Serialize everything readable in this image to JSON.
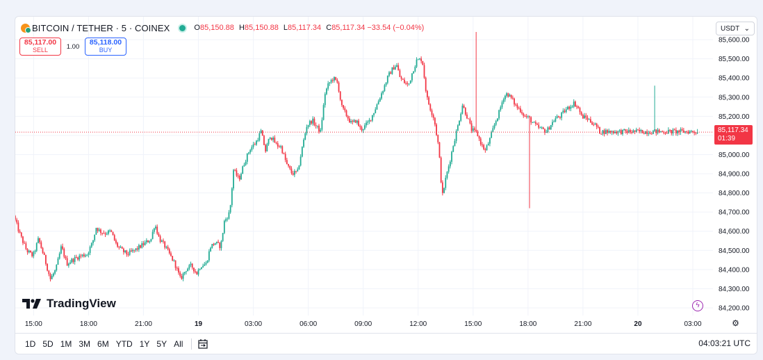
{
  "header": {
    "symbol": "BITCOIN / TETHER · 5 · COINEX",
    "o_label": "O",
    "o": "85,150.88",
    "h_label": "H",
    "h": "85,150.88",
    "l_label": "L",
    "l": "85,117.34",
    "c_label": "C",
    "c": "85,117.34",
    "change": "−33.54 (−0.04%)"
  },
  "trade": {
    "sell_price": "85,117.00",
    "sell_label": "SELL",
    "spread": "1.00",
    "buy_price": "85,118.00",
    "buy_label": "BUY"
  },
  "currency": "USDT",
  "logo": "TradingView",
  "last_price": {
    "value": "85,117.34",
    "countdown": "01:39"
  },
  "timeframes": [
    "1D",
    "5D",
    "1M",
    "3M",
    "6M",
    "YTD",
    "1Y",
    "5Y",
    "All"
  ],
  "clock": "04:03:21 UTC",
  "colors": {
    "up": "#22ab94",
    "down": "#f23645",
    "grid": "#f0f3fa"
  },
  "chart_data": {
    "type": "candlestick",
    "y_ticks": [
      84200,
      84300,
      84400,
      84500,
      84600,
      84700,
      84800,
      84900,
      85000,
      85100,
      85200,
      85300,
      85400,
      85500,
      85600
    ],
    "ylim": [
      84160,
      85720
    ],
    "x_ticks": [
      {
        "label": "15:00",
        "bold": false,
        "t": 33.0
      },
      {
        "label": "18:00",
        "bold": false,
        "t": 36.0
      },
      {
        "label": "21:00",
        "bold": false,
        "t": 39.0
      },
      {
        "label": "19",
        "bold": true,
        "t": 42.0
      },
      {
        "label": "03:00",
        "bold": false,
        "t": 45.0
      },
      {
        "label": "06:00",
        "bold": false,
        "t": 48.0
      },
      {
        "label": "09:00",
        "bold": false,
        "t": 51.0
      },
      {
        "label": "12:00",
        "bold": false,
        "t": 54.0
      },
      {
        "label": "15:00",
        "bold": false,
        "t": 57.0
      },
      {
        "label": "18:00",
        "bold": false,
        "t": 60.0
      },
      {
        "label": "21:00",
        "bold": false,
        "t": 63.0
      },
      {
        "label": "20",
        "bold": true,
        "t": 66.0
      },
      {
        "label": "03:00",
        "bold": false,
        "t": 69.0
      }
    ],
    "x_range_hours": [
      32.0,
      70.1
    ],
    "last_price": 85117.34,
    "anchors": [
      [
        32.0,
        84680
      ],
      [
        32.35,
        84580
      ],
      [
        32.7,
        84500
      ],
      [
        33.05,
        84470
      ],
      [
        33.35,
        84560
      ],
      [
        33.65,
        84470
      ],
      [
        34.0,
        84350
      ],
      [
        34.3,
        84400
      ],
      [
        34.6,
        84520
      ],
      [
        34.9,
        84430
      ],
      [
        35.2,
        84450
      ],
      [
        35.6,
        84470
      ],
      [
        36.0,
        84480
      ],
      [
        36.3,
        84540
      ],
      [
        36.5,
        84620
      ],
      [
        36.7,
        84600
      ],
      [
        37.0,
        84590
      ],
      [
        37.3,
        84600
      ],
      [
        37.6,
        84530
      ],
      [
        37.9,
        84500
      ],
      [
        38.2,
        84480
      ],
      [
        38.6,
        84500
      ],
      [
        38.9,
        84520
      ],
      [
        39.2,
        84540
      ],
      [
        39.5,
        84560
      ],
      [
        39.7,
        84640
      ],
      [
        39.95,
        84560
      ],
      [
        40.2,
        84530
      ],
      [
        40.5,
        84480
      ],
      [
        40.8,
        84430
      ],
      [
        41.1,
        84350
      ],
      [
        41.4,
        84400
      ],
      [
        41.7,
        84420
      ],
      [
        42.0,
        84380
      ],
      [
        42.2,
        84420
      ],
      [
        42.5,
        84430
      ],
      [
        42.75,
        84520
      ],
      [
        43.0,
        84540
      ],
      [
        43.3,
        84520
      ],
      [
        43.5,
        84650
      ],
      [
        43.8,
        84700
      ],
      [
        44.0,
        84920
      ],
      [
        44.3,
        84870
      ],
      [
        44.6,
        84960
      ],
      [
        44.9,
        85030
      ],
      [
        45.2,
        85060
      ],
      [
        45.5,
        85120
      ],
      [
        45.75,
        85020
      ],
      [
        46.0,
        85100
      ],
      [
        46.35,
        85050
      ],
      [
        46.6,
        85040
      ],
      [
        46.9,
        84950
      ],
      [
        47.2,
        84900
      ],
      [
        47.5,
        84910
      ],
      [
        47.8,
        85060
      ],
      [
        48.0,
        85150
      ],
      [
        48.3,
        85180
      ],
      [
        48.5,
        85150
      ],
      [
        48.75,
        85120
      ],
      [
        49.0,
        85320
      ],
      [
        49.2,
        85370
      ],
      [
        49.45,
        85400
      ],
      [
        49.7,
        85370
      ],
      [
        49.9,
        85250
      ],
      [
        50.2,
        85200
      ],
      [
        50.45,
        85160
      ],
      [
        50.7,
        85180
      ],
      [
        50.95,
        85130
      ],
      [
        51.2,
        85150
      ],
      [
        51.45,
        85180
      ],
      [
        51.7,
        85230
      ],
      [
        52.0,
        85300
      ],
      [
        52.25,
        85360
      ],
      [
        52.45,
        85410
      ],
      [
        52.7,
        85450
      ],
      [
        52.9,
        85470
      ],
      [
        53.1,
        85400
      ],
      [
        53.3,
        85380
      ],
      [
        53.55,
        85360
      ],
      [
        53.8,
        85440
      ],
      [
        54.0,
        85490
      ],
      [
        54.3,
        85500
      ],
      [
        54.55,
        85300
      ],
      [
        54.75,
        85240
      ],
      [
        54.95,
        85190
      ],
      [
        55.2,
        85040
      ],
      [
        55.4,
        84780
      ],
      [
        55.6,
        84880
      ],
      [
        55.8,
        84960
      ],
      [
        56.0,
        85050
      ],
      [
        56.25,
        85150
      ],
      [
        56.5,
        85260
      ],
      [
        56.75,
        85200
      ],
      [
        57.0,
        85130
      ],
      [
        57.3,
        85110
      ],
      [
        57.55,
        85050
      ],
      [
        57.75,
        85020
      ],
      [
        58.0,
        85080
      ],
      [
        58.3,
        85170
      ],
      [
        58.5,
        85220
      ],
      [
        58.75,
        85300
      ],
      [
        58.95,
        85320
      ],
      [
        59.2,
        85290
      ],
      [
        59.45,
        85250
      ],
      [
        59.7,
        85230
      ],
      [
        59.9,
        85200
      ],
      [
        60.15,
        85190
      ],
      [
        60.4,
        85160
      ],
      [
        60.65,
        85140
      ],
      [
        60.9,
        85130
      ],
      [
        61.1,
        85120
      ],
      [
        61.35,
        85160
      ],
      [
        61.6,
        85190
      ],
      [
        61.85,
        85200
      ],
      [
        62.1,
        85230
      ],
      [
        62.35,
        85250
      ],
      [
        62.6,
        85270
      ],
      [
        62.85,
        85240
      ],
      [
        63.0,
        85200
      ],
      [
        63.3,
        85190
      ],
      [
        63.55,
        85170
      ],
      [
        63.8,
        85150
      ],
      [
        64.0,
        85120
      ]
    ]
  }
}
